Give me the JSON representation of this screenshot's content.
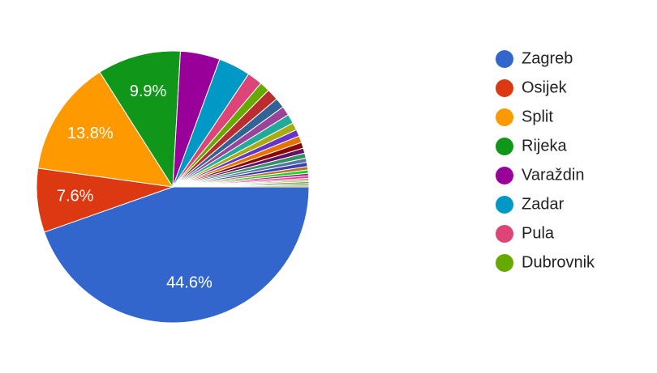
{
  "chart_data": {
    "type": "pie",
    "categories": [
      "Zagreb",
      "Osijek",
      "Split",
      "Rijeka",
      "Varaždin",
      "Zadar",
      "Pula",
      "Dubrovnik",
      null,
      null,
      null,
      null,
      null,
      null,
      null,
      null,
      null,
      null,
      null,
      null,
      null,
      null,
      null,
      null,
      null,
      null,
      null,
      null,
      null
    ],
    "values": [
      44.6,
      7.6,
      13.8,
      9.9,
      4.7,
      3.8,
      1.8,
      1.2,
      1.4,
      1.2,
      1.1,
      1.1,
      0.9,
      0.8,
      0.8,
      0.7,
      0.6,
      0.6,
      0.5,
      0.5,
      0.4,
      0.4,
      0.3,
      0.3,
      0.2,
      0.2,
      0.2,
      0.2,
      0.2
    ],
    "value_labels": [
      "44.6%",
      "7.6%",
      "13.8%",
      "9.9%",
      null,
      null,
      null,
      null,
      null,
      null,
      null,
      null,
      null,
      null,
      null,
      null,
      null,
      null,
      null,
      null,
      null,
      null,
      null,
      null,
      null,
      null,
      null,
      null,
      null
    ],
    "colors": [
      "#3366cc",
      "#dc3912",
      "#ff9900",
      "#109618",
      "#990099",
      "#0099c6",
      "#dd4477",
      "#66aa00",
      "#b82e2e",
      "#316395",
      "#994499",
      "#22aa99",
      "#aaaa11",
      "#6633cc",
      "#e67300",
      "#8b0707",
      "#651067",
      "#329262",
      "#5574a6",
      "#3b3eac",
      "#b77322",
      "#16d620",
      "#b91383",
      "#f4359e",
      "#9c5935",
      "#a9c413",
      "#2a778d",
      "#668d1c",
      "#bea413"
    ]
  }
}
